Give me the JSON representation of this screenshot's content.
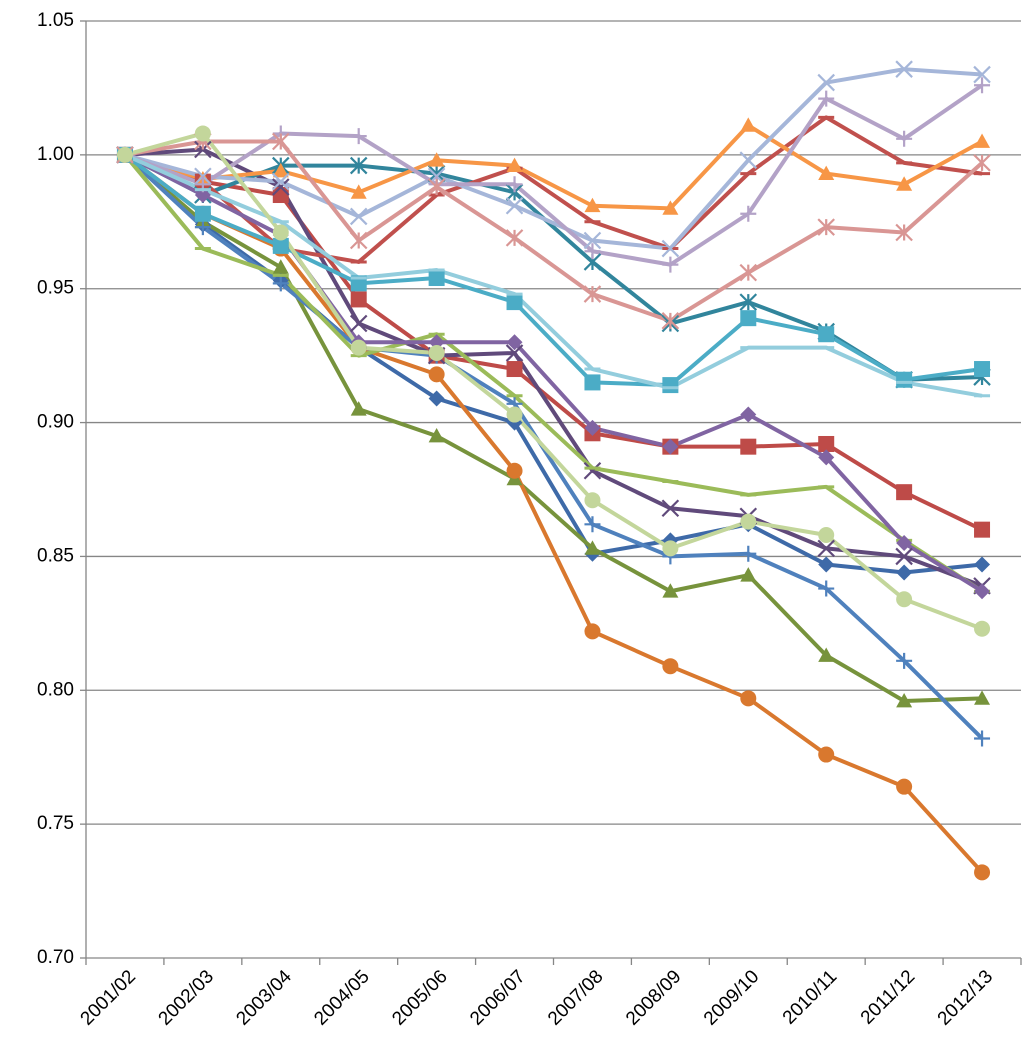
{
  "chart_data": {
    "type": "line",
    "categories": [
      "2001/02",
      "2002/03",
      "2003/04",
      "2004/05",
      "2005/06",
      "2006/07",
      "2007/08",
      "2008/09",
      "2009/10",
      "2010/11",
      "2011/12",
      "2012/13"
    ],
    "ylim": [
      0.7,
      1.05
    ],
    "yticks": [
      {
        "value": 0.7,
        "label": "0.70"
      },
      0.75,
      {
        "value": 0.8,
        "label": "0.80"
      },
      0.85,
      {
        "value": 0.9,
        "label": "0.90"
      },
      0.95,
      {
        "value": 1.0,
        "label": "1.00"
      },
      1.05
    ],
    "grid": true,
    "series": [
      {
        "color": "#3e6aa8",
        "marker": "diamond",
        "values": [
          1.0,
          0.974,
          0.953,
          0.928,
          0.909,
          0.9,
          0.851,
          0.856,
          0.862,
          0.847,
          0.844,
          0.847
        ]
      },
      {
        "color": "#be4b48",
        "marker": "square",
        "values": [
          1.0,
          0.99,
          0.985,
          0.946,
          0.925,
          0.92,
          0.896,
          0.891,
          0.891,
          0.892,
          0.874,
          0.86
        ]
      },
      {
        "color": "#77933c",
        "marker": "triangle",
        "values": [
          1.0,
          0.975,
          0.958,
          0.905,
          0.895,
          0.879,
          0.853,
          0.837,
          0.843,
          0.813,
          0.796,
          0.797
        ]
      },
      {
        "color": "#604a7b",
        "marker": "x",
        "values": [
          1.0,
          1.002,
          0.988,
          0.937,
          0.925,
          0.926,
          0.882,
          0.868,
          0.865,
          0.853,
          0.85,
          0.839
        ]
      },
      {
        "color": "#31859c",
        "marker": "asterisk",
        "values": [
          1.0,
          0.985,
          0.996,
          0.996,
          0.993,
          0.986,
          0.96,
          0.937,
          0.945,
          0.934,
          0.916,
          0.917
        ]
      },
      {
        "color": "#d9782e",
        "marker": "circle",
        "values": [
          1.0,
          0.978,
          0.965,
          0.928,
          0.918,
          0.882,
          0.822,
          0.809,
          0.797,
          0.776,
          0.764,
          0.732
        ]
      },
      {
        "color": "#4f81bd",
        "marker": "plus",
        "values": [
          1.0,
          0.973,
          0.952,
          0.928,
          0.925,
          0.907,
          0.862,
          0.85,
          0.851,
          0.838,
          0.811,
          0.782
        ]
      },
      {
        "color": "#c0504d",
        "marker": "dash",
        "values": [
          1.0,
          0.99,
          0.965,
          0.96,
          0.985,
          0.995,
          0.975,
          0.965,
          0.993,
          1.014,
          0.997,
          0.993
        ]
      },
      {
        "color": "#9bbb59",
        "marker": "dash",
        "values": [
          1.0,
          0.965,
          0.955,
          0.925,
          0.933,
          0.91,
          0.883,
          0.878,
          0.873,
          0.876,
          0.856,
          0.837
        ]
      },
      {
        "color": "#8064a2",
        "marker": "diamond",
        "values": [
          1.0,
          0.985,
          0.97,
          0.93,
          0.93,
          0.93,
          0.898,
          0.891,
          0.903,
          0.887,
          0.855,
          0.837
        ]
      },
      {
        "color": "#4bacc6",
        "marker": "square",
        "values": [
          1.0,
          0.978,
          0.966,
          0.952,
          0.954,
          0.945,
          0.915,
          0.914,
          0.939,
          0.933,
          0.916,
          0.92
        ]
      },
      {
        "color": "#f79646",
        "marker": "triangle",
        "values": [
          1.0,
          0.991,
          0.994,
          0.986,
          0.998,
          0.996,
          0.981,
          0.98,
          1.011,
          0.993,
          0.989,
          1.005
        ]
      },
      {
        "color": "#a5b6d9",
        "marker": "x",
        "values": [
          1.0,
          0.992,
          0.99,
          0.977,
          0.992,
          0.981,
          0.968,
          0.965,
          0.998,
          1.027,
          1.032,
          1.03
        ]
      },
      {
        "color": "#b3a2c7",
        "marker": "plus",
        "values": [
          1.0,
          0.989,
          1.008,
          1.007,
          0.989,
          0.989,
          0.964,
          0.959,
          0.978,
          1.021,
          1.006,
          1.026
        ]
      },
      {
        "color": "#d99694",
        "marker": "asterisk",
        "values": [
          1.0,
          1.005,
          1.005,
          0.968,
          0.988,
          0.969,
          0.948,
          0.938,
          0.956,
          0.973,
          0.971,
          0.997
        ]
      },
      {
        "color": "#93cddd",
        "marker": "dash",
        "values": [
          1.0,
          0.987,
          0.975,
          0.954,
          0.957,
          0.948,
          0.92,
          0.913,
          0.928,
          0.928,
          0.915,
          0.91
        ]
      },
      {
        "color": "#c3d69b",
        "marker": "circle",
        "values": [
          1.0,
          1.008,
          0.971,
          0.928,
          0.926,
          0.903,
          0.871,
          0.853,
          0.863,
          0.858,
          0.834,
          0.823
        ]
      }
    ]
  }
}
